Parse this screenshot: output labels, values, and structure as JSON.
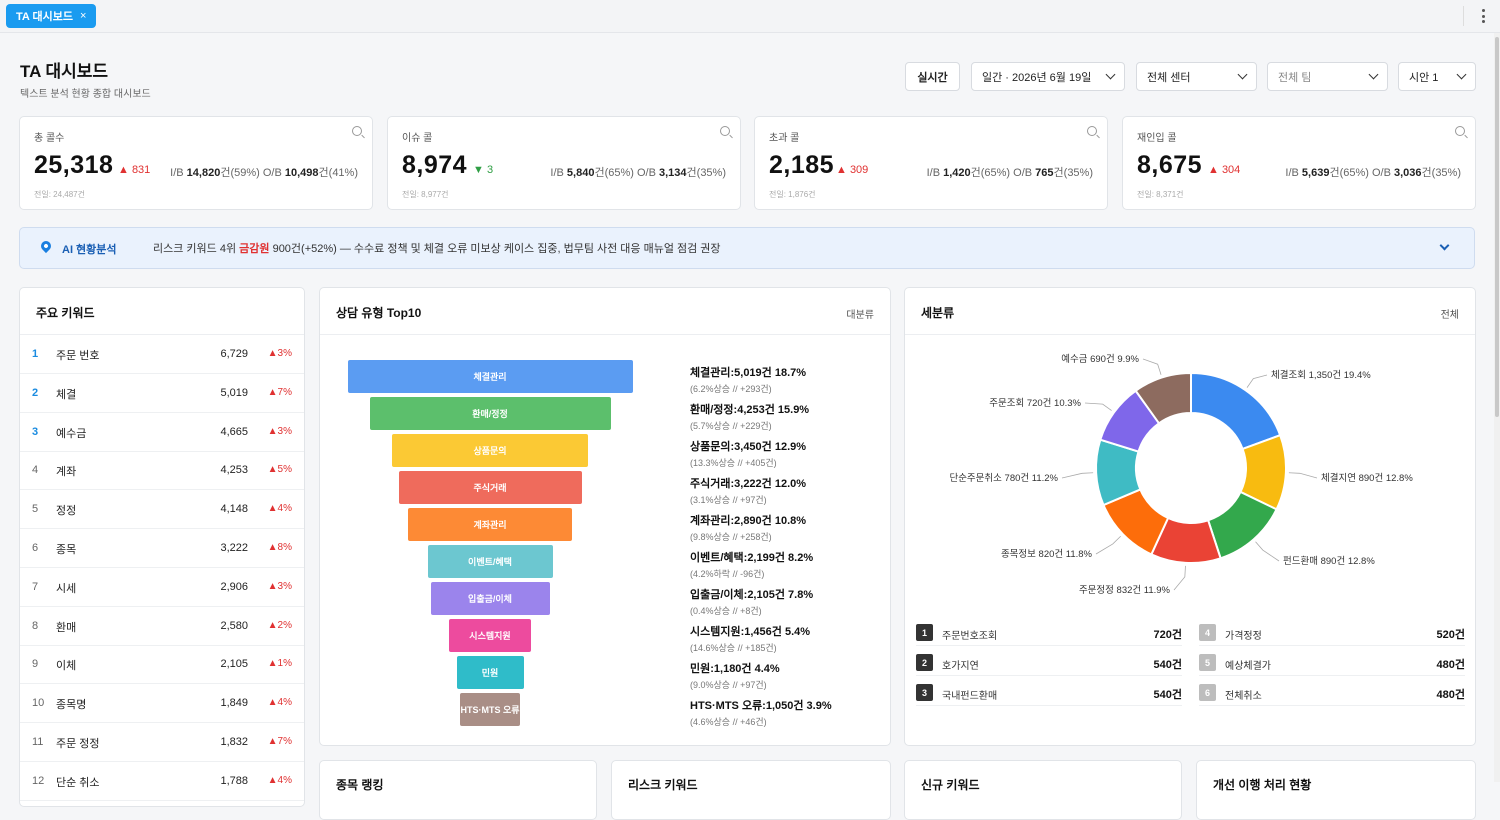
{
  "tab": {
    "label": "TA 대시보드",
    "close": "×"
  },
  "header": {
    "title": "TA 대시보드",
    "subtitle": "텍스트 분석 현황 종합 대시보드"
  },
  "controls": {
    "realtime": "실시간",
    "period": "일간 · 2026년 6월 19일",
    "center": "전체 센터",
    "team": "전체 팀",
    "hypothesis": "시안 1"
  },
  "kpis": [
    {
      "label": "총 콜수",
      "value": "25,318",
      "delta": "▲ 831",
      "dir": "up",
      "ib_label": "I/B",
      "ib_value": "14,820",
      "ib_rest": "건(59%)",
      "ob_label": "O/B",
      "ob_value": "10,498",
      "ob_rest": "건(41%)",
      "prev": "전일: 24,487건"
    },
    {
      "label": "이슈 콜",
      "value": "8,974",
      "delta": "▼ 3",
      "dir": "down",
      "ib_label": "I/B",
      "ib_value": "5,840",
      "ib_rest": "건(65%)",
      "ob_label": "O/B",
      "ob_value": "3,134",
      "ob_rest": "건(35%)",
      "prev": "전일: 8,977건"
    },
    {
      "label": "초과 콜",
      "value": "2,185",
      "delta": "▲ 309",
      "dir": "up",
      "ib_label": "I/B",
      "ib_value": "1,420",
      "ib_rest": "건(65%)",
      "ob_label": "O/B",
      "ob_value": "765",
      "ob_rest": "건(35%)",
      "prev": "전일: 1,876건"
    },
    {
      "label": "재인입 콜",
      "value": "8,675",
      "delta": "▲ 304",
      "dir": "up",
      "ib_label": "I/B",
      "ib_value": "5,639",
      "ib_rest": "건(65%)",
      "ob_label": "O/B",
      "ob_value": "3,036",
      "ob_rest": "건(35%)",
      "prev": "전일: 8,371건"
    }
  ],
  "ai": {
    "title": "AI 현황분석",
    "msg_pre": "리스크 키워드 4위 ",
    "msg_kw": "금감원",
    "msg_post": " 900건(+52%) — 수수료 정책 및 체결 오류 미보상 케이스 집중, 법무팀 사전 대응 매뉴얼 점검 권장"
  },
  "keywords": {
    "title": "주요 키워드",
    "rows": [
      {
        "rank": "1",
        "name": "주문 번호",
        "count": "6,729",
        "pct": "▲3%"
      },
      {
        "rank": "2",
        "name": "체결",
        "count": "5,019",
        "pct": "▲7%"
      },
      {
        "rank": "3",
        "name": "예수금",
        "count": "4,665",
        "pct": "▲3%"
      },
      {
        "rank": "4",
        "name": "계좌",
        "count": "4,253",
        "pct": "▲5%"
      },
      {
        "rank": "5",
        "name": "정정",
        "count": "4,148",
        "pct": "▲4%"
      },
      {
        "rank": "6",
        "name": "종목",
        "count": "3,222",
        "pct": "▲8%"
      },
      {
        "rank": "7",
        "name": "시세",
        "count": "2,906",
        "pct": "▲3%"
      },
      {
        "rank": "8",
        "name": "환매",
        "count": "2,580",
        "pct": "▲2%"
      },
      {
        "rank": "9",
        "name": "이체",
        "count": "2,105",
        "pct": "▲1%"
      },
      {
        "rank": "10",
        "name": "종목명",
        "count": "1,849",
        "pct": "▲4%"
      },
      {
        "rank": "11",
        "name": "주문 정정",
        "count": "1,832",
        "pct": "▲7%"
      },
      {
        "rank": "12",
        "name": "단순 취소",
        "count": "1,788",
        "pct": "▲4%"
      }
    ]
  },
  "funnel": {
    "title": "상담 유형 Top10",
    "right": "대분류",
    "items": [
      {
        "name": "체결관리",
        "line1": "체결관리:5,019건 18.7%",
        "line2": "(6.2%상승 // +293건)",
        "color": "#5b9cf2"
      },
      {
        "name": "환매/정정",
        "line1": "환매/정정:4,253건 15.9%",
        "line2": "(5.7%상승 // +229건)",
        "color": "#5cbf6c"
      },
      {
        "name": "상품문의",
        "line1": "상품문의:3,450건 12.9%",
        "line2": "(13.3%상승 // +405건)",
        "color": "#fbc934"
      },
      {
        "name": "주식거래",
        "line1": "주식거래:3,222건 12.0%",
        "line2": "(3.1%상승 // +97건)",
        "color": "#ef6b5c"
      },
      {
        "name": "계좌관리",
        "line1": "계좌관리:2,890건 10.8%",
        "line2": "(9.8%상승 // +258건)",
        "color": "#fd8a35"
      },
      {
        "name": "이벤트/혜택",
        "line1": "이벤트/혜택:2,199건 8.2%",
        "line2": "(4.2%하락 // -96건)",
        "color": "#6cc7d0"
      },
      {
        "name": "입출금/이체",
        "line1": "입출금/이체:2,105건 7.8%",
        "line2": "(0.4%상승 // +8건)",
        "color": "#9b84ec"
      },
      {
        "name": "시스템지원",
        "line1": "시스템지원:1,456건 5.4%",
        "line2": "(14.6%상승 // +185건)",
        "color": "#ed4b9e"
      },
      {
        "name": "민원",
        "line1": "민원:1,180건 4.4%",
        "line2": "(9.0%상승 // +97건)",
        "color": "#2fbcc9"
      },
      {
        "name": "HTS·MTS 오류",
        "line1": "HTS·MTS 오류:1,050건 3.9%",
        "line2": "(4.6%상승 // +46건)",
        "color": "#a98e86"
      }
    ]
  },
  "donut": {
    "title": "세분류",
    "right": "전체",
    "slices": [
      {
        "label": "체결조회 1,350건 19.4%",
        "value": 19.4,
        "color": "#3b8af0"
      },
      {
        "label": "체결지연 890건 12.8%",
        "value": 12.8,
        "color": "#f8bb10"
      },
      {
        "label": "펀드환매 890건 12.8%",
        "value": 12.8,
        "color": "#33a84c"
      },
      {
        "label": "주문정정 832건 11.9%",
        "value": 11.9,
        "color": "#ea4335"
      },
      {
        "label": "종목정보 820건 11.8%",
        "value": 11.8,
        "color": "#fd6d0a"
      },
      {
        "label": "단순주문취소 780건 11.2%",
        "value": 11.2,
        "color": "#3fbbc4"
      },
      {
        "label": "주문조회 720건 10.3%",
        "value": 10.3,
        "color": "#7f67ea"
      },
      {
        "label": "예수금 690건 9.9%",
        "value": 9.9,
        "color": "#8d6b5f"
      }
    ],
    "list_left": [
      {
        "num": "1",
        "name": "주문번호조회",
        "count": "720건"
      },
      {
        "num": "2",
        "name": "호가지연",
        "count": "540건"
      },
      {
        "num": "3",
        "name": "국내펀드환매",
        "count": "540건"
      }
    ],
    "list_right": [
      {
        "num": "4",
        "name": "가격정정",
        "count": "520건"
      },
      {
        "num": "5",
        "name": "예상체결가",
        "count": "480건"
      },
      {
        "num": "6",
        "name": "전체취소",
        "count": "480건"
      }
    ]
  },
  "bottom_panels": [
    "종목 랭킹",
    "리스크 키워드",
    "신규 키워드",
    "개선 이행 처리 현황"
  ]
}
